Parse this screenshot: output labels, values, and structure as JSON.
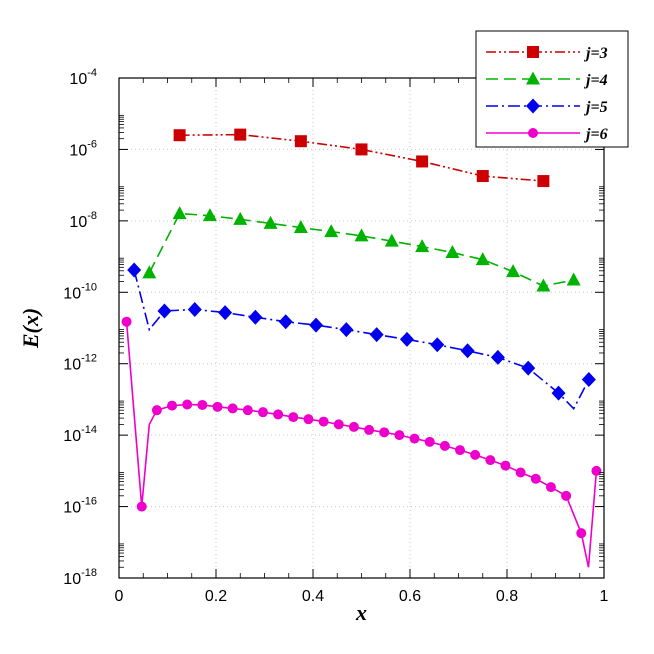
{
  "chart_data": {
    "type": "line",
    "xlabel": "x",
    "ylabel": "E(x)",
    "xlim": [
      0,
      1
    ],
    "ylim_log10": [
      -18,
      -4
    ],
    "y_scale": "log",
    "grid": "dotted",
    "legend_position": "top-right",
    "x_ticks": [
      {
        "value": 0,
        "label": "0"
      },
      {
        "value": 0.2,
        "label": "0.2"
      },
      {
        "value": 0.4,
        "label": "0.4"
      },
      {
        "value": 0.6,
        "label": "0.6"
      },
      {
        "value": 0.8,
        "label": "0.8"
      },
      {
        "value": 1,
        "label": "1"
      }
    ],
    "y_ticks": [
      {
        "log10": -18,
        "base": "10",
        "exp": "-18"
      },
      {
        "log10": -16,
        "base": "10",
        "exp": "-16"
      },
      {
        "log10": -14,
        "base": "10",
        "exp": "-14"
      },
      {
        "log10": -12,
        "base": "10",
        "exp": "-12"
      },
      {
        "log10": -10,
        "base": "10",
        "exp": "-10"
      },
      {
        "log10": -8,
        "base": "10",
        "exp": "-8"
      },
      {
        "log10": -6,
        "base": "10",
        "exp": "-6"
      },
      {
        "log10": -4,
        "base": "10",
        "exp": "-4"
      }
    ],
    "series": [
      {
        "name": "j=3",
        "color": "#cc0000",
        "marker": "square",
        "dash": "10,3,2,3,2,3",
        "points": [
          [
            0.125,
            2.5e-06
          ],
          [
            0.25,
            2.6e-06
          ],
          [
            0.375,
            1.7e-06
          ],
          [
            0.5,
            1e-06
          ],
          [
            0.625,
            4.6e-07
          ],
          [
            0.75,
            1.8e-07
          ],
          [
            0.875,
            1.3e-07
          ]
        ],
        "line_extra": []
      },
      {
        "name": "j=4",
        "color": "#00b300",
        "marker": "triangle",
        "dash": "12,6",
        "points": [
          [
            0.0625,
            3.5e-10
          ],
          [
            0.125,
            1.6e-08
          ],
          [
            0.1875,
            1.4e-08
          ],
          [
            0.25,
            1.1e-08
          ],
          [
            0.3125,
            8.5e-09
          ],
          [
            0.375,
            6.5e-09
          ],
          [
            0.4375,
            5e-09
          ],
          [
            0.5,
            3.8e-09
          ],
          [
            0.5625,
            2.7e-09
          ],
          [
            0.625,
            1.9e-09
          ],
          [
            0.6875,
            1.3e-09
          ],
          [
            0.75,
            8.2e-10
          ],
          [
            0.8125,
            3.8e-10
          ],
          [
            0.875,
            1.5e-10
          ],
          [
            0.9375,
            2.2e-10
          ]
        ],
        "line_extra": []
      },
      {
        "name": "j=5",
        "color": "#0000ee",
        "marker": "diamond",
        "dash": "12,4,2,4",
        "points": [
          [
            0.03125,
            4.2e-10
          ],
          [
            0.09375,
            3e-11
          ],
          [
            0.15625,
            3.3e-11
          ],
          [
            0.21875,
            2.7e-11
          ],
          [
            0.28125,
            2e-11
          ],
          [
            0.34375,
            1.5e-11
          ],
          [
            0.40625,
            1.2e-11
          ],
          [
            0.46875,
            9e-12
          ],
          [
            0.53125,
            6.5e-12
          ],
          [
            0.59375,
            4.8e-12
          ],
          [
            0.65625,
            3.4e-12
          ],
          [
            0.71875,
            2.3e-12
          ],
          [
            0.78125,
            1.5e-12
          ],
          [
            0.84375,
            7.5e-13
          ],
          [
            0.90625,
            1.5e-13
          ],
          [
            0.96875,
            3.6e-13
          ]
        ],
        "line_extra": [
          [
            0.0625,
            9e-12
          ],
          [
            0.9375,
            5.5e-14
          ]
        ]
      },
      {
        "name": "j=6",
        "color": "#ee00cc",
        "marker": "circle",
        "dash": "",
        "points": [
          [
            0.015625,
            1.5e-11
          ],
          [
            0.046875,
            1e-16
          ],
          [
            0.078125,
            5e-14
          ],
          [
            0.109375,
            6.7e-14
          ],
          [
            0.140625,
            7.2e-14
          ],
          [
            0.171875,
            7e-14
          ],
          [
            0.203125,
            6.2e-14
          ],
          [
            0.234375,
            5.6e-14
          ],
          [
            0.265625,
            5e-14
          ],
          [
            0.296875,
            4.4e-14
          ],
          [
            0.328125,
            3.8e-14
          ],
          [
            0.359375,
            3.2e-14
          ],
          [
            0.390625,
            2.8e-14
          ],
          [
            0.421875,
            2.4e-14
          ],
          [
            0.453125,
            2e-14
          ],
          [
            0.484375,
            1.7e-14
          ],
          [
            0.515625,
            1.4e-14
          ],
          [
            0.546875,
            1.2e-14
          ],
          [
            0.578125,
            1e-14
          ],
          [
            0.609375,
            8e-15
          ],
          [
            0.640625,
            6.5e-15
          ],
          [
            0.671875,
            5e-15
          ],
          [
            0.703125,
            3.8e-15
          ],
          [
            0.734375,
            2.8e-15
          ],
          [
            0.765625,
            2e-15
          ],
          [
            0.796875,
            1.4e-15
          ],
          [
            0.828125,
            9e-16
          ],
          [
            0.859375,
            6e-16
          ],
          [
            0.890625,
            3.5e-16
          ],
          [
            0.921875,
            2e-16
          ],
          [
            0.953125,
            1.8e-17
          ],
          [
            0.984375,
            1e-15
          ]
        ],
        "line_extra": [
          [
            0.0625,
            2e-14
          ],
          [
            0.968,
            2e-18
          ]
        ]
      }
    ]
  }
}
